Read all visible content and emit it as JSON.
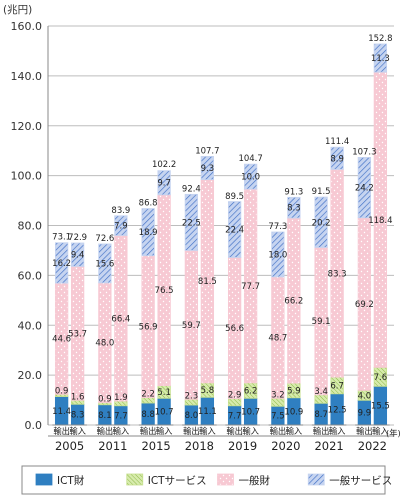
{
  "chart_data": {
    "type": "bar",
    "stacked": true,
    "unit_label": "(兆円)",
    "year_suffix": "(年)",
    "yticks": [
      "0.0",
      "20.0",
      "40.0",
      "60.0",
      "80.0",
      "100.0",
      "120.0",
      "140.0",
      "160.0"
    ],
    "ylim": [
      0,
      160
    ],
    "categories": [
      "2005",
      "2011",
      "2015",
      "2018",
      "2019",
      "2020",
      "2021",
      "2022"
    ],
    "bar_labels": [
      "輸出",
      "輸入"
    ],
    "series": [
      {
        "name": "ICT財",
        "color": "#2f7fc1",
        "pattern": "none"
      },
      {
        "name": "ICTサービス",
        "color": "#c6e08e",
        "pattern": "diag"
      },
      {
        "name": "一般財",
        "color": "#f7c9d3",
        "pattern": "dots"
      },
      {
        "name": "一般サービス",
        "color": "#c6d4f0",
        "pattern": "hatch"
      }
    ],
    "data": {
      "export": [
        [
          11.4,
          0.9,
          44.6,
          16.2
        ],
        [
          8.1,
          0.9,
          48.0,
          15.6
        ],
        [
          8.8,
          2.2,
          56.9,
          18.9
        ],
        [
          8.0,
          2.3,
          59.7,
          22.5
        ],
        [
          7.7,
          2.9,
          56.6,
          22.4
        ],
        [
          7.5,
          3.2,
          48.7,
          18.0
        ],
        [
          8.7,
          3.4,
          59.1,
          20.2
        ],
        [
          9.9,
          4.0,
          69.2,
          24.2
        ]
      ],
      "import": [
        [
          8.3,
          1.6,
          53.7,
          9.4
        ],
        [
          7.7,
          1.9,
          66.4,
          7.9
        ],
        [
          10.7,
          5.1,
          76.5,
          9.7
        ],
        [
          11.1,
          5.8,
          81.5,
          9.3
        ],
        [
          10.7,
          6.2,
          77.7,
          10.0
        ],
        [
          10.9,
          5.9,
          66.2,
          8.3
        ],
        [
          12.5,
          6.7,
          83.3,
          8.9
        ],
        [
          15.5,
          7.6,
          118.4,
          11.3
        ]
      ]
    },
    "totals": {
      "export": [
        73.1,
        72.6,
        86.8,
        92.4,
        89.5,
        77.3,
        91.5,
        107.3
      ],
      "import": [
        72.9,
        83.9,
        102.2,
        107.7,
        104.7,
        91.3,
        111.4,
        152.8
      ]
    }
  }
}
